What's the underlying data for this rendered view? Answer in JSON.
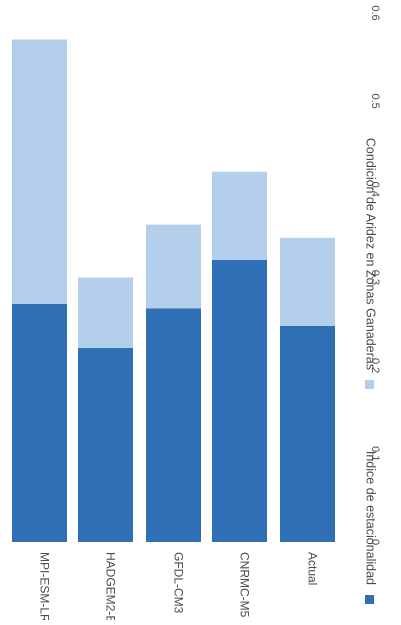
{
  "chart_data": {
    "type": "bar",
    "orientation": "horizontal-stacked",
    "rotated": "page rotated 90 degrees clockwise",
    "categories": [
      "MPI-ESM-LR",
      "HADGEM2-ES",
      "GFDL-CM3",
      "CNRMC-M5",
      "Actual"
    ],
    "series": [
      {
        "name": "Indice de estacionalidad",
        "values": [
          0.27,
          0.22,
          0.265,
          0.32,
          0.245
        ],
        "color": "#2e6fb6"
      },
      {
        "name": "Condicion de Aridez en Zonas Ganaderas",
        "values": [
          0.3,
          0.08,
          0.095,
          0.1,
          0.1
        ],
        "color": "#b3cfec"
      }
    ],
    "ticks": [
      "0",
      "0.1",
      "0.2",
      "0.3",
      "0.4",
      "0.5",
      "0.6"
    ],
    "xlim": [
      0,
      0.6
    ],
    "grid": false,
    "legend_placement": "left (rotated, below plot)"
  }
}
